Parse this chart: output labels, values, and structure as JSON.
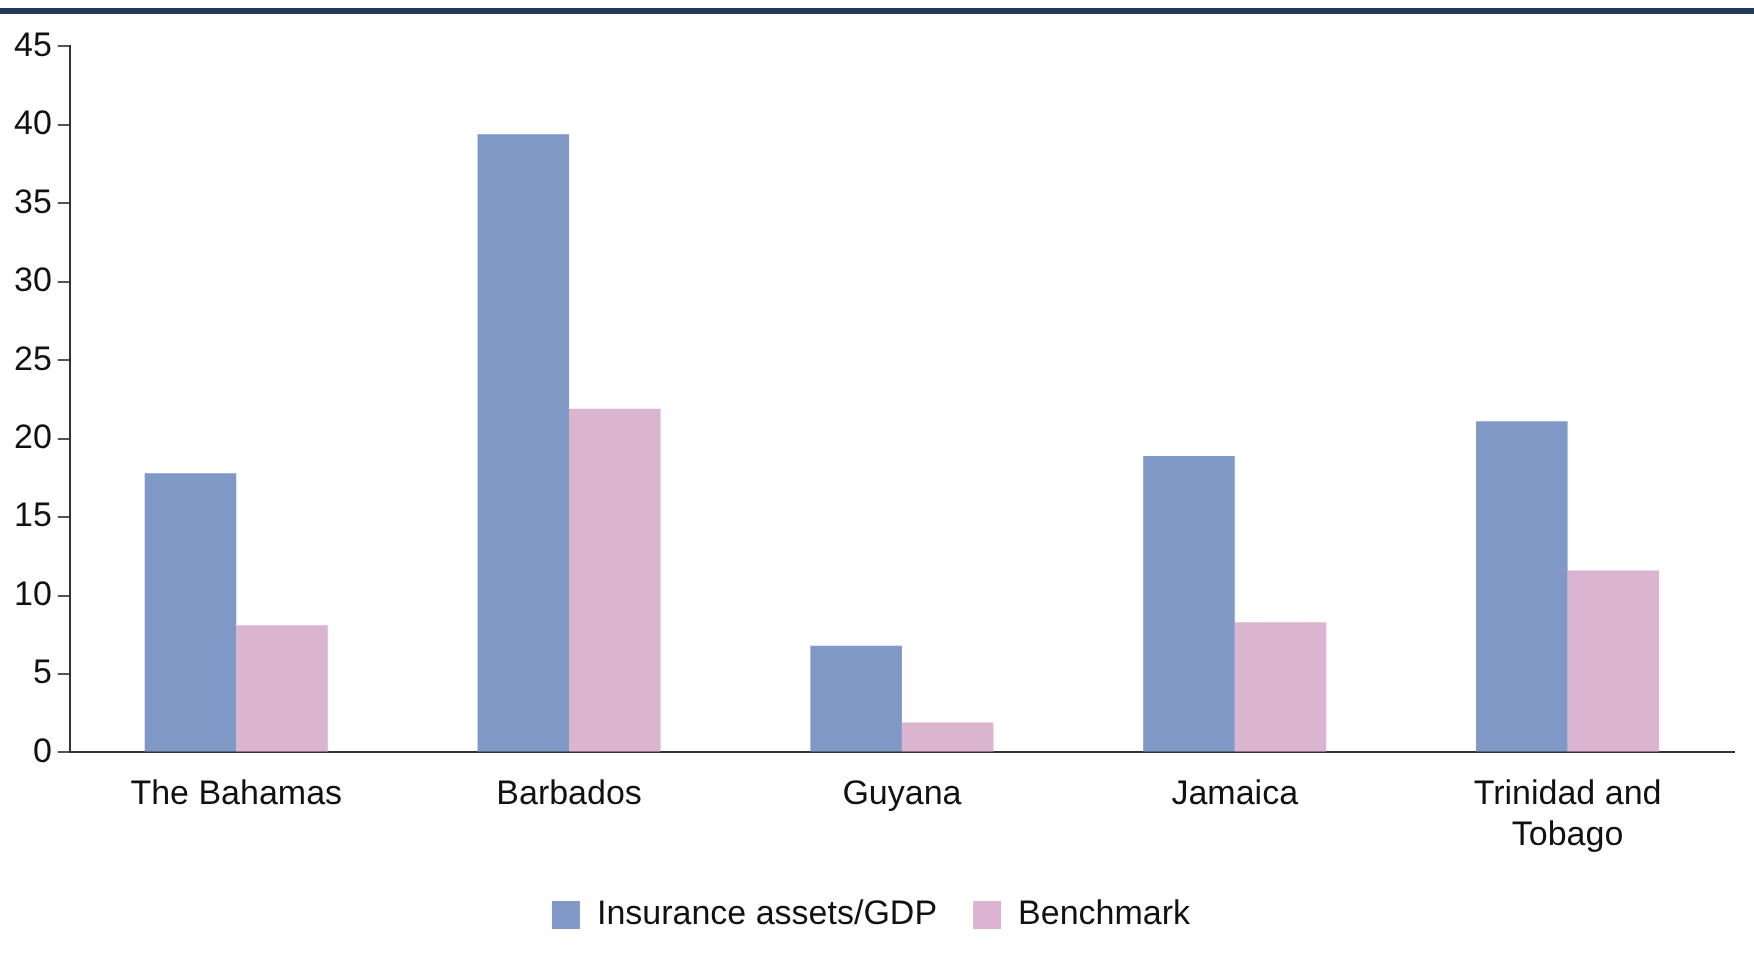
{
  "chart_data": {
    "type": "bar",
    "categories": [
      "The Bahamas",
      "Barbados",
      "Guyana",
      "Jamaica",
      "Trinidad and Tobago"
    ],
    "series": [
      {
        "name": "Insurance assets/GDP",
        "color": "#7f98c5",
        "values": [
          17.8,
          39.4,
          6.8,
          18.9,
          21.1
        ]
      },
      {
        "name": "Benchmark",
        "color": "#dbb5cf",
        "values": [
          8.1,
          21.9,
          1.9,
          8.3,
          11.6
        ]
      }
    ],
    "ylim": [
      0,
      45
    ],
    "yticks": [
      0,
      5,
      10,
      15,
      20,
      25,
      30,
      35,
      40,
      45
    ],
    "grid": false,
    "legend": "bottom"
  }
}
